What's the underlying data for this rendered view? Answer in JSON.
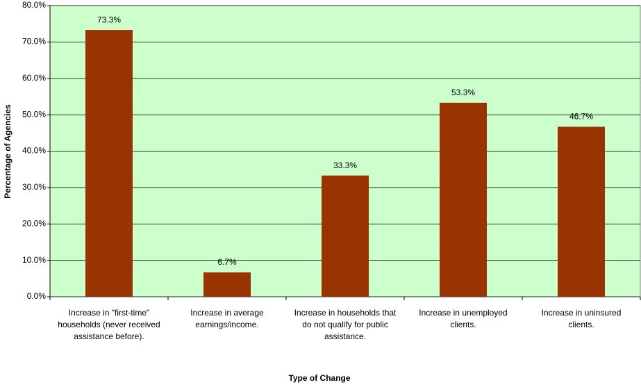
{
  "chart_data": {
    "type": "bar",
    "x_label": "Type of Change",
    "y_label": "Percentage of Agencies",
    "categories": [
      "Increase in \"first-time\" households (never received assistance before).",
      "Increase in average earnings/income.",
      "Increase in households that do not qualify for public assistance.",
      "Increase in unemployed clients.",
      "Increase in uninsured clients."
    ],
    "values": [
      73.3,
      6.7,
      33.3,
      53.3,
      46.7
    ],
    "value_labels": [
      "73.3%",
      "6.7%",
      "33.3%",
      "53.3%",
      "46.7%"
    ],
    "color": "#993300",
    "background": "#ccffcc",
    "ylim": [
      0,
      80
    ],
    "yticks": [
      {
        "value": 0,
        "label": "0.0%"
      },
      {
        "value": 10,
        "label": "10.0%"
      },
      {
        "value": 20,
        "label": "20.0%"
      },
      {
        "value": 30,
        "label": "30.0%"
      },
      {
        "value": 40,
        "label": "40.0%"
      },
      {
        "value": 50,
        "label": "50.0%"
      },
      {
        "value": 60,
        "label": "60.0%"
      },
      {
        "value": 70,
        "label": "70.0%"
      },
      {
        "value": 80,
        "label": "80.0%"
      }
    ],
    "grid": true
  }
}
